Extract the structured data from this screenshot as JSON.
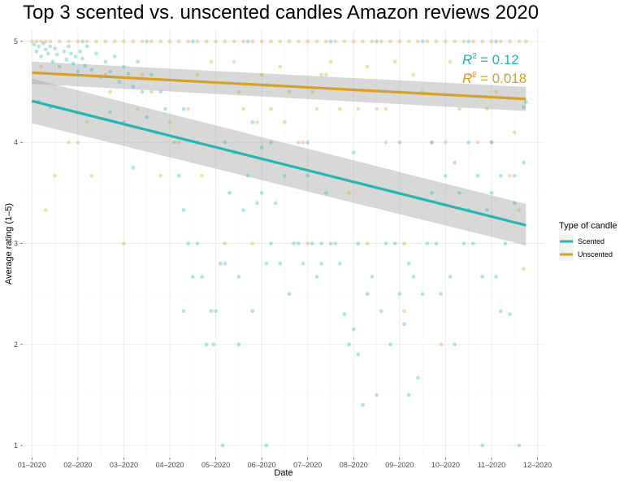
{
  "chart_data": {
    "type": "scatter",
    "title": "Top 3 scented vs. unscented candles Amazon reviews 2020",
    "xlabel": "Date",
    "ylabel": "Average rating (1–5)",
    "x_ticks": [
      "01–2020",
      "02–2020",
      "03–2020",
      "04–2020",
      "05–2020",
      "06–2020",
      "07–2020",
      "08–2020",
      "09–2020",
      "10–2020",
      "11–2020",
      "12–2020"
    ],
    "y_ticks": [
      "1",
      "2",
      "3",
      "4",
      "5"
    ],
    "xlim": [
      -0.2,
      11.15
    ],
    "ylim": [
      0.88,
      5.12
    ],
    "grid": true,
    "legend": {
      "title": "Type of candle",
      "position": "right",
      "items": [
        "Scented",
        "Unscented"
      ]
    },
    "series": [
      {
        "name": "Scented",
        "color": "#26b5b0",
        "trend": {
          "x": [
            0,
            10.75
          ],
          "y": [
            4.41,
            3.18
          ],
          "ci_upper": [
            4.63,
            3.39
          ],
          "ci_lower": [
            4.19,
            2.98
          ]
        },
        "r2_label": "= 0.12",
        "points": [
          [
            0.05,
            4.97
          ],
          [
            0.1,
            4.9
          ],
          [
            0.15,
            4.95
          ],
          [
            0.2,
            4.85
          ],
          [
            0.25,
            4.98
          ],
          [
            0.3,
            4.92
          ],
          [
            0.35,
            4.88
          ],
          [
            0.4,
            4.95
          ],
          [
            0.45,
            4.8
          ],
          [
            0.5,
            4.93
          ],
          [
            0.55,
            4.87
          ],
          [
            0.6,
            4.75
          ],
          [
            0.7,
            4.9
          ],
          [
            0.75,
            4.82
          ],
          [
            0.8,
            4.95
          ],
          [
            0.85,
            4.88
          ],
          [
            0.9,
            4.78
          ],
          [
            0.95,
            4.85
          ],
          [
            1.0,
            4.7
          ],
          [
            1.05,
            4.9
          ],
          [
            1.1,
            4.83
          ],
          [
            1.15,
            4.76
          ],
          [
            1.2,
            4.95
          ],
          [
            1.3,
            4.72
          ],
          [
            1.4,
            4.88
          ],
          [
            1.5,
            4.65
          ],
          [
            1.6,
            4.8
          ],
          [
            1.7,
            4.7
          ],
          [
            1.8,
            4.85
          ],
          [
            1.9,
            4.6
          ],
          [
            2.0,
            4.75
          ],
          [
            2.1,
            4.68
          ],
          [
            2.2,
            4.55
          ],
          [
            2.3,
            4.8
          ],
          [
            2.4,
            4.5
          ],
          [
            0.15,
            4.4
          ],
          [
            0.4,
            4.35
          ],
          [
            1.7,
            4.3
          ],
          [
            2.0,
            4.2
          ],
          [
            2.2,
            3.75
          ],
          [
            2.5,
            4.25
          ],
          [
            2.7,
            4.1
          ],
          [
            2.9,
            4.33
          ],
          [
            3.1,
            4.0
          ],
          [
            3.2,
            3.67
          ],
          [
            3.3,
            3.33
          ],
          [
            3.4,
            3.0
          ],
          [
            3.5,
            2.67
          ],
          [
            3.6,
            3.0
          ],
          [
            3.7,
            2.67
          ],
          [
            3.8,
            2.0
          ],
          [
            3.9,
            2.33
          ],
          [
            3.95,
            2.0
          ],
          [
            4.0,
            2.33
          ],
          [
            4.1,
            2.8
          ],
          [
            4.15,
            1.0
          ],
          [
            4.2,
            2.8
          ],
          [
            4.3,
            3.5
          ],
          [
            4.4,
            3.9
          ],
          [
            4.5,
            2.67
          ],
          [
            4.6,
            3.33
          ],
          [
            4.7,
            3.67
          ],
          [
            4.8,
            2.33
          ],
          [
            4.9,
            3.4
          ],
          [
            5.0,
            3.5
          ],
          [
            5.1,
            2.8
          ],
          [
            5.2,
            3.0
          ],
          [
            5.3,
            3.4
          ],
          [
            5.4,
            2.8
          ],
          [
            5.5,
            3.67
          ],
          [
            5.6,
            2.5
          ],
          [
            5.7,
            3.0
          ],
          [
            5.8,
            3.0
          ],
          [
            5.9,
            2.8
          ],
          [
            6.0,
            3.67
          ],
          [
            6.1,
            3.0
          ],
          [
            6.2,
            2.67
          ],
          [
            6.3,
            3.0
          ],
          [
            6.4,
            3.5
          ],
          [
            6.5,
            3.0
          ],
          [
            6.6,
            3.0
          ],
          [
            6.7,
            2.8
          ],
          [
            6.8,
            2.3
          ],
          [
            6.9,
            2.0
          ],
          [
            7.0,
            2.15
          ],
          [
            7.1,
            1.9
          ],
          [
            7.2,
            1.4
          ],
          [
            7.3,
            2.5
          ],
          [
            7.4,
            2.67
          ],
          [
            7.5,
            1.5
          ],
          [
            7.6,
            2.33
          ],
          [
            7.7,
            3.0
          ],
          [
            7.8,
            2.0
          ],
          [
            7.9,
            3.0
          ],
          [
            8.0,
            2.5
          ],
          [
            8.1,
            2.2
          ],
          [
            8.2,
            2.8
          ],
          [
            8.3,
            2.67
          ],
          [
            8.4,
            1.67
          ],
          [
            8.5,
            2.5
          ],
          [
            8.6,
            3.0
          ],
          [
            8.7,
            3.5
          ],
          [
            8.8,
            3.0
          ],
          [
            8.9,
            2.5
          ],
          [
            9.0,
            3.67
          ],
          [
            9.1,
            2.67
          ],
          [
            9.2,
            2.0
          ],
          [
            9.3,
            3.5
          ],
          [
            9.4,
            3.0
          ],
          [
            9.5,
            3.33
          ],
          [
            9.6,
            3.0
          ],
          [
            9.7,
            3.67
          ],
          [
            9.8,
            2.67
          ],
          [
            9.9,
            3.33
          ],
          [
            10.0,
            3.5
          ],
          [
            10.1,
            2.67
          ],
          [
            10.2,
            2.33
          ],
          [
            10.3,
            3.0
          ],
          [
            10.4,
            2.3
          ],
          [
            10.5,
            3.67
          ],
          [
            10.6,
            1.0
          ],
          [
            10.7,
            4.35
          ],
          [
            10.75,
            4.4
          ],
          [
            9.8,
            1.0
          ],
          [
            5.1,
            1.0
          ],
          [
            4.5,
            2.0
          ],
          [
            3.3,
            2.33
          ],
          [
            6.3,
            2.8
          ],
          [
            7.1,
            3.0
          ],
          [
            8.2,
            1.5
          ],
          [
            2.6,
            4.67
          ],
          [
            2.8,
            4.5
          ],
          [
            3.3,
            4.33
          ],
          [
            3.6,
            4.0
          ],
          [
            4.2,
            4.0
          ],
          [
            4.8,
            4.2
          ],
          [
            5.0,
            3.95
          ],
          [
            5.2,
            4.0
          ],
          [
            6.0,
            4.0
          ],
          [
            7.0,
            3.9
          ],
          [
            8.0,
            4.0
          ],
          [
            8.7,
            4.0
          ],
          [
            9.2,
            3.8
          ],
          [
            9.5,
            4.0
          ],
          [
            10.0,
            4.0
          ],
          [
            10.2,
            3.67
          ],
          [
            10.5,
            3.4
          ],
          [
            10.7,
            3.8
          ],
          [
            4.7,
            5.0
          ],
          [
            6.5,
            5.0
          ],
          [
            7.5,
            5.0
          ],
          [
            8.5,
            5.0
          ],
          [
            9.5,
            5.0
          ],
          [
            10.1,
            5.0
          ],
          [
            3.5,
            5.0
          ],
          [
            2.5,
            5.0
          ],
          [
            1.1,
            5.0
          ]
        ]
      },
      {
        "name": "Unscented",
        "color": "#d4a02a",
        "trend": {
          "x": [
            0,
            10.75
          ],
          "y": [
            4.69,
            4.43
          ],
          "ci_upper": [
            4.8,
            4.55
          ],
          "ci_lower": [
            4.58,
            4.31
          ]
        },
        "r2_label": "= 0.018",
        "points": [
          [
            0.0,
            5.0
          ],
          [
            0.1,
            5.0
          ],
          [
            0.2,
            5.0
          ],
          [
            0.3,
            5.0
          ],
          [
            0.4,
            5.0
          ],
          [
            0.6,
            5.0
          ],
          [
            0.8,
            5.0
          ],
          [
            1.0,
            5.0
          ],
          [
            1.2,
            5.0
          ],
          [
            1.4,
            5.0
          ],
          [
            1.6,
            5.0
          ],
          [
            1.8,
            5.0
          ],
          [
            2.0,
            5.0
          ],
          [
            2.2,
            5.0
          ],
          [
            2.4,
            5.0
          ],
          [
            2.6,
            5.0
          ],
          [
            2.8,
            5.0
          ],
          [
            3.0,
            5.0
          ],
          [
            3.2,
            5.0
          ],
          [
            3.4,
            5.0
          ],
          [
            3.6,
            5.0
          ],
          [
            3.8,
            5.0
          ],
          [
            4.0,
            5.0
          ],
          [
            4.2,
            5.0
          ],
          [
            4.4,
            5.0
          ],
          [
            4.6,
            5.0
          ],
          [
            4.8,
            5.0
          ],
          [
            5.0,
            5.0
          ],
          [
            5.2,
            5.0
          ],
          [
            5.4,
            5.0
          ],
          [
            5.6,
            5.0
          ],
          [
            5.8,
            5.0
          ],
          [
            6.0,
            5.0
          ],
          [
            6.2,
            5.0
          ],
          [
            6.4,
            5.0
          ],
          [
            6.6,
            5.0
          ],
          [
            6.8,
            5.0
          ],
          [
            7.0,
            5.0
          ],
          [
            7.2,
            5.0
          ],
          [
            7.4,
            5.0
          ],
          [
            7.6,
            5.0
          ],
          [
            7.8,
            5.0
          ],
          [
            8.0,
            5.0
          ],
          [
            8.2,
            5.0
          ],
          [
            8.4,
            5.0
          ],
          [
            8.6,
            5.0
          ],
          [
            8.8,
            5.0
          ],
          [
            9.0,
            5.0
          ],
          [
            9.2,
            5.0
          ],
          [
            9.4,
            5.0
          ],
          [
            9.6,
            5.0
          ],
          [
            9.8,
            5.0
          ],
          [
            10.0,
            5.0
          ],
          [
            10.2,
            5.0
          ],
          [
            10.4,
            5.0
          ],
          [
            10.6,
            5.0
          ],
          [
            10.75,
            5.0
          ],
          [
            0.2,
            4.75
          ],
          [
            0.5,
            3.67
          ],
          [
            0.3,
            3.33
          ],
          [
            1.0,
            4.0
          ],
          [
            1.3,
            3.67
          ],
          [
            1.6,
            4.67
          ],
          [
            2.0,
            3.0
          ],
          [
            2.3,
            4.33
          ],
          [
            2.6,
            4.5
          ],
          [
            2.8,
            3.67
          ],
          [
            3.0,
            4.2
          ],
          [
            3.4,
            4.33
          ],
          [
            3.7,
            3.67
          ],
          [
            3.9,
            4.8
          ],
          [
            4.2,
            3.0
          ],
          [
            4.4,
            4.8
          ],
          [
            4.6,
            4.33
          ],
          [
            4.8,
            3.0
          ],
          [
            5.0,
            4.67
          ],
          [
            5.2,
            4.33
          ],
          [
            5.4,
            4.75
          ],
          [
            5.6,
            4.5
          ],
          [
            5.8,
            4.0
          ],
          [
            6.0,
            3.0
          ],
          [
            6.1,
            4.5
          ],
          [
            6.3,
            4.67
          ],
          [
            6.5,
            4.8
          ],
          [
            6.7,
            4.33
          ],
          [
            6.9,
            3.5
          ],
          [
            7.1,
            4.33
          ],
          [
            7.3,
            4.75
          ],
          [
            7.5,
            4.33
          ],
          [
            7.7,
            4.0
          ],
          [
            7.9,
            4.8
          ],
          [
            8.1,
            3.0
          ],
          [
            8.3,
            4.67
          ],
          [
            8.5,
            4.5
          ],
          [
            8.7,
            4.0
          ],
          [
            8.9,
            2.0
          ],
          [
            9.1,
            4.8
          ],
          [
            9.3,
            4.33
          ],
          [
            9.5,
            4.67
          ],
          [
            9.7,
            4.0
          ],
          [
            9.9,
            4.33
          ],
          [
            10.1,
            4.5
          ],
          [
            10.3,
            4.67
          ],
          [
            10.5,
            4.1
          ],
          [
            10.7,
            2.75
          ],
          [
            10.6,
            3.33
          ],
          [
            7.7,
            4.33
          ],
          [
            6.2,
            4.33
          ],
          [
            5.5,
            4.2
          ],
          [
            4.5,
            4.5
          ],
          [
            3.2,
            4.0
          ],
          [
            2.4,
            4.67
          ],
          [
            1.7,
            4.5
          ],
          [
            1.2,
            4.2
          ],
          [
            8.1,
            2.33
          ],
          [
            9.0,
            4.0
          ],
          [
            10.0,
            4.0
          ],
          [
            10.4,
            3.67
          ],
          [
            3.6,
            4.67
          ],
          [
            7.3,
            3.0
          ],
          [
            6.4,
            4.67
          ],
          [
            5.9,
            4.0
          ],
          [
            0.8,
            4.0
          ],
          [
            4.9,
            4.2
          ],
          [
            9.6,
            4.67
          ]
        ]
      }
    ]
  }
}
